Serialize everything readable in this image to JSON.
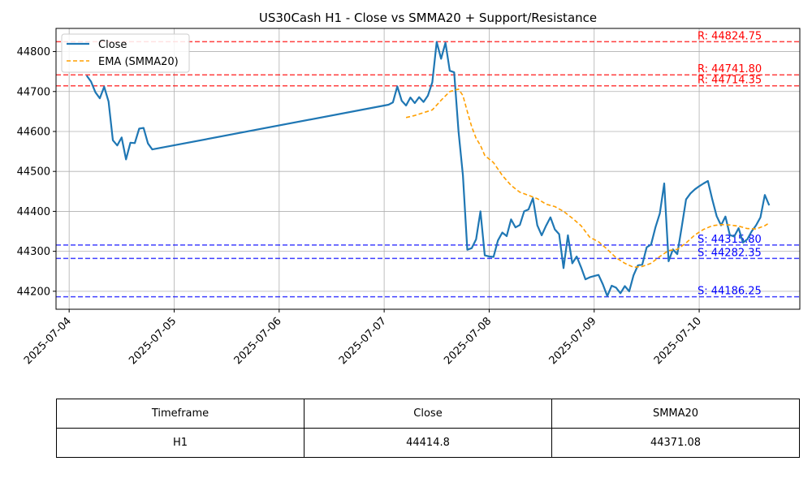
{
  "chart_data": {
    "type": "line",
    "title": "US30Cash H1 - Close vs SMMA20 + Support/Resistance",
    "xlabel": "",
    "ylabel": "",
    "grid": true,
    "legend_position": "top-left",
    "x_range": [
      "2025-07-03 21:00",
      "2025-07-10 23:00"
    ],
    "ylim": [
      44155,
      44858
    ],
    "x_ticks": [
      "2025-07-04",
      "2025-07-05",
      "2025-07-06",
      "2025-07-07",
      "2025-07-08",
      "2025-07-09",
      "2025-07-10"
    ],
    "y_ticks": [
      44200,
      44300,
      44400,
      44500,
      44600,
      44700,
      44800
    ],
    "series": [
      {
        "name": "Close",
        "color": "#1f77b4",
        "style": "solid",
        "points": [
          [
            "2025-07-04 04:00",
            44740
          ],
          [
            "2025-07-04 05:00",
            44725
          ],
          [
            "2025-07-04 06:00",
            44698
          ],
          [
            "2025-07-04 07:00",
            44683
          ],
          [
            "2025-07-04 08:00",
            44712
          ],
          [
            "2025-07-04 09:00",
            44675
          ],
          [
            "2025-07-04 10:00",
            44578
          ],
          [
            "2025-07-04 11:00",
            44565
          ],
          [
            "2025-07-04 12:00",
            44585
          ],
          [
            "2025-07-04 13:00",
            44530
          ],
          [
            "2025-07-04 14:00",
            44572
          ],
          [
            "2025-07-04 15:00",
            44571
          ],
          [
            "2025-07-04 16:00",
            44607
          ],
          [
            "2025-07-04 17:00",
            44609
          ],
          [
            "2025-07-04 18:00",
            44570
          ],
          [
            "2025-07-04 19:00",
            44555
          ],
          [
            "2025-07-07 01:00",
            44667
          ],
          [
            "2025-07-07 02:00",
            44673
          ],
          [
            "2025-07-07 03:00",
            44713
          ],
          [
            "2025-07-07 04:00",
            44677
          ],
          [
            "2025-07-07 05:00",
            44665
          ],
          [
            "2025-07-07 06:00",
            44685
          ],
          [
            "2025-07-07 07:00",
            44671
          ],
          [
            "2025-07-07 08:00",
            44686
          ],
          [
            "2025-07-07 09:00",
            44674
          ],
          [
            "2025-07-07 10:00",
            44690
          ],
          [
            "2025-07-07 11:00",
            44723
          ],
          [
            "2025-07-07 12:00",
            44824
          ],
          [
            "2025-07-07 13:00",
            44782
          ],
          [
            "2025-07-07 14:00",
            44822
          ],
          [
            "2025-07-07 15:00",
            44752
          ],
          [
            "2025-07-07 16:00",
            44748
          ],
          [
            "2025-07-07 17:00",
            44600
          ],
          [
            "2025-07-07 18:00",
            44490
          ],
          [
            "2025-07-07 19:00",
            44304
          ],
          [
            "2025-07-07 20:00",
            44308
          ],
          [
            "2025-07-07 21:00",
            44330
          ],
          [
            "2025-07-07 22:00",
            44400
          ],
          [
            "2025-07-07 23:00",
            44290
          ],
          [
            "2025-07-08 00:00",
            44287
          ],
          [
            "2025-07-08 01:00",
            44286
          ],
          [
            "2025-07-08 02:00",
            44327
          ],
          [
            "2025-07-08 03:00",
            44347
          ],
          [
            "2025-07-08 04:00",
            44338
          ],
          [
            "2025-07-08 05:00",
            44380
          ],
          [
            "2025-07-08 06:00",
            44360
          ],
          [
            "2025-07-08 07:00",
            44366
          ],
          [
            "2025-07-08 08:00",
            44400
          ],
          [
            "2025-07-08 09:00",
            44405
          ],
          [
            "2025-07-08 10:00",
            44433
          ],
          [
            "2025-07-08 11:00",
            44365
          ],
          [
            "2025-07-08 12:00",
            44340
          ],
          [
            "2025-07-08 13:00",
            44364
          ],
          [
            "2025-07-08 14:00",
            44385
          ],
          [
            "2025-07-08 15:00",
            44355
          ],
          [
            "2025-07-08 16:00",
            44343
          ],
          [
            "2025-07-08 17:00",
            44258
          ],
          [
            "2025-07-08 18:00",
            44340
          ],
          [
            "2025-07-08 19:00",
            44270
          ],
          [
            "2025-07-08 20:00",
            44287
          ],
          [
            "2025-07-08 21:00",
            44260
          ],
          [
            "2025-07-08 22:00",
            44230
          ],
          [
            "2025-07-08 23:00",
            44235
          ],
          [
            "2025-07-09 00:00",
            44238
          ],
          [
            "2025-07-09 01:00",
            44241
          ],
          [
            "2025-07-09 02:00",
            44217
          ],
          [
            "2025-07-09 03:00",
            44188
          ],
          [
            "2025-07-09 04:00",
            44214
          ],
          [
            "2025-07-09 05:00",
            44209
          ],
          [
            "2025-07-09 06:00",
            44195
          ],
          [
            "2025-07-09 07:00",
            44213
          ],
          [
            "2025-07-09 08:00",
            44200
          ],
          [
            "2025-07-09 09:00",
            44240
          ],
          [
            "2025-07-09 10:00",
            44265
          ],
          [
            "2025-07-09 11:00",
            44267
          ],
          [
            "2025-07-09 12:00",
            44310
          ],
          [
            "2025-07-09 13:00",
            44317
          ],
          [
            "2025-07-09 14:00",
            44360
          ],
          [
            "2025-07-09 15:00",
            44395
          ],
          [
            "2025-07-09 16:00",
            44470
          ],
          [
            "2025-07-09 17:00",
            44275
          ],
          [
            "2025-07-09 18:00",
            44305
          ],
          [
            "2025-07-09 19:00",
            44293
          ],
          [
            "2025-07-09 20:00",
            44360
          ],
          [
            "2025-07-09 21:00",
            44430
          ],
          [
            "2025-07-09 22:00",
            44445
          ],
          [
            "2025-07-09 23:00",
            44455
          ],
          [
            "2025-07-10 00:00",
            44463
          ],
          [
            "2025-07-10 01:00",
            44470
          ],
          [
            "2025-07-10 02:00",
            44476
          ],
          [
            "2025-07-10 03:00",
            44430
          ],
          [
            "2025-07-10 04:00",
            44388
          ],
          [
            "2025-07-10 05:00",
            44365
          ],
          [
            "2025-07-10 06:00",
            44387
          ],
          [
            "2025-07-10 07:00",
            44341
          ],
          [
            "2025-07-10 08:00",
            44337
          ],
          [
            "2025-07-10 09:00",
            44358
          ],
          [
            "2025-07-10 10:00",
            44322
          ],
          [
            "2025-07-10 11:00",
            44330
          ],
          [
            "2025-07-10 12:00",
            44350
          ],
          [
            "2025-07-10 13:00",
            44365
          ],
          [
            "2025-07-10 14:00",
            44385
          ],
          [
            "2025-07-10 15:00",
            44441
          ],
          [
            "2025-07-10 16:00",
            44415
          ]
        ]
      },
      {
        "name": "EMA (SMMA20)",
        "color": "#ff9f00",
        "style": "dashed",
        "points": [
          [
            "2025-07-07 05:00",
            44635
          ],
          [
            "2025-07-07 07:00",
            44640
          ],
          [
            "2025-07-07 09:00",
            44647
          ],
          [
            "2025-07-07 11:00",
            44654
          ],
          [
            "2025-07-07 13:00",
            44678
          ],
          [
            "2025-07-07 15:00",
            44700
          ],
          [
            "2025-07-07 17:00",
            44706
          ],
          [
            "2025-07-07 18:00",
            44690
          ],
          [
            "2025-07-07 19:00",
            44650
          ],
          [
            "2025-07-07 20:00",
            44612
          ],
          [
            "2025-07-07 21:00",
            44583
          ],
          [
            "2025-07-07 22:00",
            44565
          ],
          [
            "2025-07-07 23:00",
            44540
          ],
          [
            "2025-07-08 01:00",
            44522
          ],
          [
            "2025-07-08 03:00",
            44490
          ],
          [
            "2025-07-08 05:00",
            44465
          ],
          [
            "2025-07-08 07:00",
            44448
          ],
          [
            "2025-07-08 09:00",
            44440
          ],
          [
            "2025-07-08 11:00",
            44432
          ],
          [
            "2025-07-08 13:00",
            44418
          ],
          [
            "2025-07-08 15:00",
            44412
          ],
          [
            "2025-07-08 17:00",
            44400
          ],
          [
            "2025-07-08 19:00",
            44383
          ],
          [
            "2025-07-08 21:00",
            44364
          ],
          [
            "2025-07-08 23:00",
            44335
          ],
          [
            "2025-07-09 01:00",
            44324
          ],
          [
            "2025-07-09 03:00",
            44305
          ],
          [
            "2025-07-09 05:00",
            44284
          ],
          [
            "2025-07-09 07:00",
            44270
          ],
          [
            "2025-07-09 09:00",
            44260
          ],
          [
            "2025-07-09 11:00",
            44262
          ],
          [
            "2025-07-09 13:00",
            44270
          ],
          [
            "2025-07-09 15:00",
            44287
          ],
          [
            "2025-07-09 17:00",
            44302
          ],
          [
            "2025-07-09 19:00",
            44305
          ],
          [
            "2025-07-09 21:00",
            44321
          ],
          [
            "2025-07-09 23:00",
            44341
          ],
          [
            "2025-07-10 01:00",
            44355
          ],
          [
            "2025-07-10 03:00",
            44364
          ],
          [
            "2025-07-10 05:00",
            44367
          ],
          [
            "2025-07-10 07:00",
            44366
          ],
          [
            "2025-07-10 09:00",
            44363
          ],
          [
            "2025-07-10 11:00",
            44357
          ],
          [
            "2025-07-10 13:00",
            44356
          ],
          [
            "2025-07-10 15:00",
            44364
          ],
          [
            "2025-07-10 16:00",
            44371
          ]
        ]
      }
    ],
    "resistance_levels": [
      {
        "value": 44824.75,
        "label": "R: 44824.75",
        "color": "#ff0000"
      },
      {
        "value": 44741.8,
        "label": "R: 44741.80",
        "color": "#ff0000"
      },
      {
        "value": 44714.35,
        "label": "R: 44714.35",
        "color": "#ff0000"
      }
    ],
    "support_levels": [
      {
        "value": 44315.8,
        "label": "S: 44315.80",
        "color": "#0000ff"
      },
      {
        "value": 44282.35,
        "label": "S: 44282.35",
        "color": "#0000ff"
      },
      {
        "value": 44186.25,
        "label": "S: 44186.25",
        "color": "#0000ff"
      }
    ]
  },
  "summary_table": {
    "headers": [
      "Timeframe",
      "Close",
      "SMMA20"
    ],
    "row": [
      "H1",
      "44414.8",
      "44371.08"
    ]
  }
}
